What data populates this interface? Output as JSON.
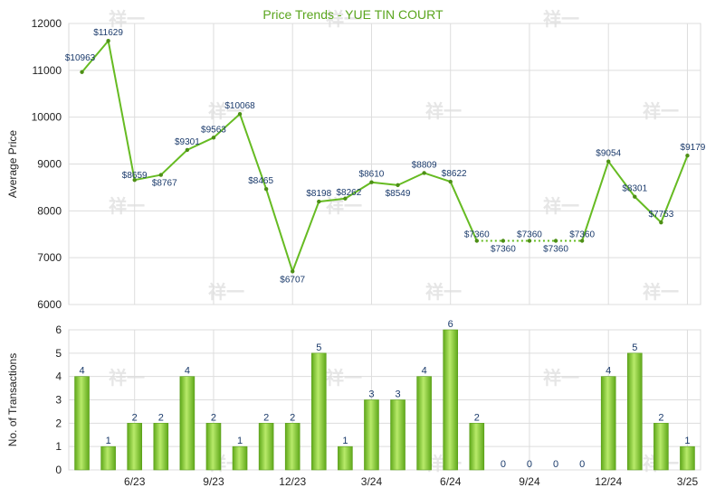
{
  "chart_data": [
    {
      "type": "line",
      "title": "Price Trends - YUE TIN COURT",
      "xlabel": "",
      "ylabel": "Average Price",
      "ylim": [
        6000,
        12000
      ],
      "yticks": [
        "6000",
        "7000",
        "8000",
        "9000",
        "10000",
        "11000",
        "12000"
      ],
      "xticks": [
        "6/23",
        "9/23",
        "12/23",
        "3/24",
        "6/24",
        "9/24",
        "12/24",
        "3/25"
      ],
      "grid": true,
      "values": [
        10963,
        11629,
        8659,
        8767,
        9301,
        9563,
        10068,
        8465,
        6707,
        8198,
        8262,
        8610,
        8549,
        8809,
        8622,
        7360,
        7360,
        7360,
        7360,
        7360,
        9054,
        8301,
        7753,
        9179
      ],
      "labels": [
        "$10963",
        "$11629",
        "$8659",
        "$8767",
        "$9301",
        "$9563",
        "$10068",
        "$8465",
        "$6707",
        "$8198",
        "$8262",
        "$8610",
        "$8549",
        "$8809",
        "$8622",
        "$7360",
        "$7360",
        "$7360",
        "$7360",
        "$7360",
        "$9054",
        "$8301",
        "$7753",
        "$9179"
      ],
      "dotted_segment_indices": [
        15,
        16,
        17,
        18,
        19
      ],
      "line_color": "#66bb22",
      "watermark": "祥一"
    },
    {
      "type": "bar",
      "ylabel": "No. of Transactions",
      "ylim": [
        0,
        6
      ],
      "yticks": [
        "0",
        "1",
        "2",
        "3",
        "4",
        "5",
        "6"
      ],
      "xticks": [
        "6/23",
        "9/23",
        "12/23",
        "3/24",
        "6/24",
        "9/24",
        "12/24",
        "3/25"
      ],
      "values": [
        4,
        1,
        2,
        2,
        4,
        2,
        1,
        2,
        2,
        5,
        1,
        3,
        3,
        4,
        6,
        2,
        0,
        0,
        0,
        0,
        4,
        5,
        2,
        1
      ],
      "labels": [
        "4",
        "1",
        "2",
        "2",
        "4",
        "2",
        "1",
        "2",
        "2",
        "5",
        "1",
        "3",
        "3",
        "4",
        "6",
        "2",
        "0",
        "0",
        "0",
        "0",
        "4",
        "5",
        "2",
        "1"
      ],
      "bar_color": "#7ccc2a"
    }
  ]
}
